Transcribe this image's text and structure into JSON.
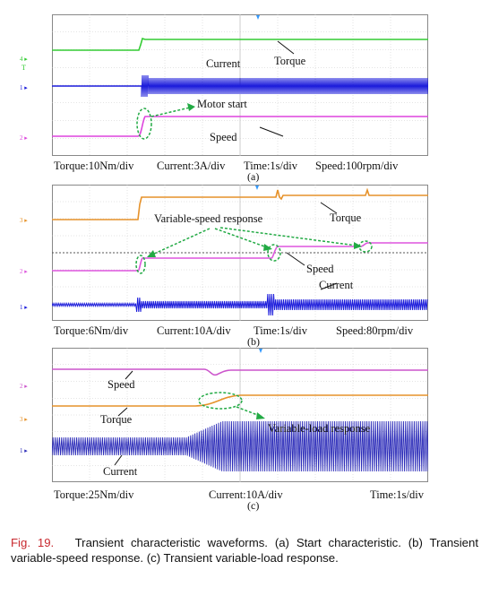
{
  "colors": {
    "torque_a": "#33cc33",
    "current_a": "#1a1adb",
    "speed_a": "#dd44dd",
    "torque_b": "#e6922a",
    "speed_b": "#dd55dd",
    "current_b": "#1a1adb",
    "speed_c": "#cc55cc",
    "torque_c": "#e6922a",
    "current_c": "#2a2ab8",
    "annotation_arrow": "#22aa44",
    "caption_lead": "#c8282e",
    "grid": "#c8c8c8"
  },
  "panel_a": {
    "label": "(a)",
    "labels": {
      "torque": "Torque",
      "current": "Current",
      "motor_start": "Motor start",
      "speed": "Speed"
    },
    "scales": {
      "torque": "Torque:10Nm/div",
      "current": "Current:3A/div",
      "time": "Time:1s/div",
      "speed": "Speed:100rpm/div"
    },
    "markers": {
      "ch4": "4 ▸",
      "trig": "T",
      "ch1": "1 ▸",
      "ch2": "2 ▸"
    }
  },
  "panel_b": {
    "label": "(b)",
    "labels": {
      "variable_speed": "Variable-speed response",
      "torque": "Torque",
      "speed": "Speed",
      "current": "Current"
    },
    "scales": {
      "torque": "Torque:6Nm/div",
      "current": "Current:10A/div",
      "time": "Time:1s/div",
      "speed": "Speed:80rpm/div"
    },
    "markers": {
      "ch3": "3 ▸",
      "ch2": "2 ▸",
      "ch1": "1 ▸"
    }
  },
  "panel_c": {
    "label": "(c)",
    "labels": {
      "speed": "Speed",
      "torque": "Torque",
      "variable_load": "Variable-load response",
      "current": "Current"
    },
    "scales": {
      "torque": "Torque:25Nm/div",
      "current": "Current:10A/div",
      "time": "Time:1s/div"
    },
    "markers": {
      "ch2": "2 ▸",
      "ch3": "3 ▸",
      "ch1": "1 ▸"
    }
  },
  "caption": {
    "lead": "Fig. 19.",
    "text": "Transient characteristic waveforms. (a) Start characteristic. (b) Transient variable-speed response. (c) Transient variable-load response."
  }
}
